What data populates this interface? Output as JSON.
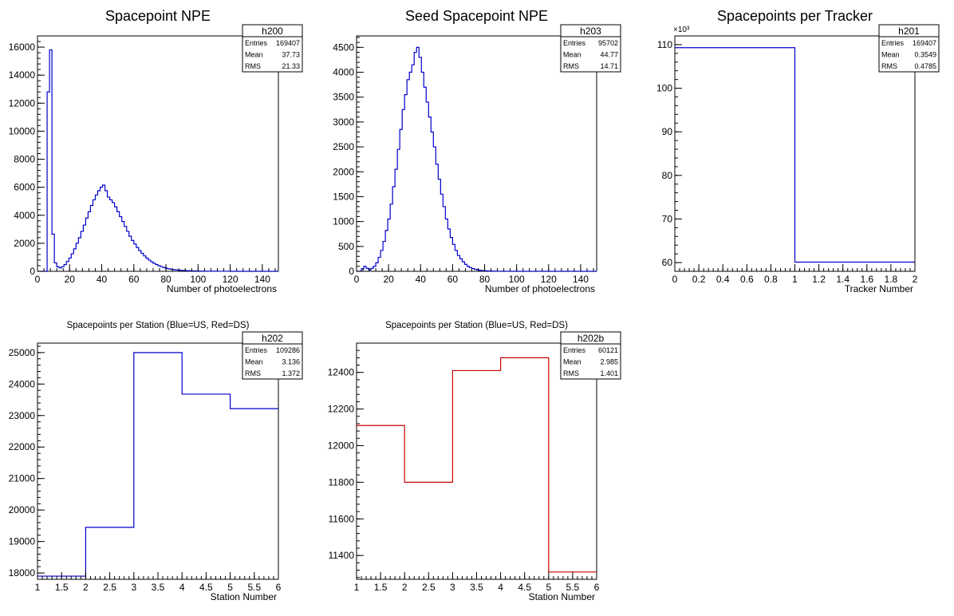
{
  "chart_data": [
    {
      "type": "histogram",
      "histname": "h200",
      "title": "Spacepoint NPE",
      "xlabel": "Number of photoelectrons",
      "ylabel": "",
      "xlim": [
        0,
        150
      ],
      "ylim": [
        0,
        16800
      ],
      "xticks": [
        0,
        20,
        40,
        60,
        80,
        100,
        120,
        140
      ],
      "yticks": [
        0,
        2000,
        4000,
        6000,
        8000,
        10000,
        12000,
        14000,
        16000
      ],
      "ytick_exponent": "",
      "line_color": "#0000cc",
      "bin_edges_start": 0,
      "bin_width": 1.5,
      "values": [
        0,
        0,
        0,
        0,
        12800,
        15800,
        2650,
        600,
        320,
        250,
        330,
        480,
        700,
        950,
        1250,
        1600,
        2000,
        2400,
        2850,
        3300,
        3800,
        4250,
        4700,
        5100,
        5450,
        5750,
        6000,
        6150,
        5750,
        5300,
        5100,
        4900,
        4600,
        4250,
        3900,
        3550,
        3200,
        2850,
        2500,
        2200,
        1950,
        1700,
        1480,
        1280,
        1100,
        940,
        800,
        680,
        570,
        480,
        400,
        330,
        270,
        220,
        180,
        150,
        120,
        100,
        85,
        70,
        60,
        50,
        42,
        36,
        30,
        25,
        21,
        18,
        15,
        12,
        10,
        8,
        7,
        6,
        5,
        4,
        3,
        3,
        2,
        2,
        0,
        0,
        0,
        0,
        0,
        0,
        0,
        0,
        0,
        0,
        0,
        0,
        0,
        0,
        0,
        0,
        0,
        0,
        0,
        0
      ],
      "stats": {
        "Entries": "169407",
        "Mean": "37.73",
        "RMS": "21.33"
      }
    },
    {
      "type": "histogram",
      "histname": "h203",
      "title": "Seed Spacepoint NPE",
      "xlabel": "Number of photoelectrons",
      "ylabel": "",
      "xlim": [
        0,
        150
      ],
      "ylim": [
        0,
        4730
      ],
      "xticks": [
        0,
        20,
        40,
        60,
        80,
        100,
        120,
        140
      ],
      "yticks": [
        0,
        500,
        1000,
        1500,
        2000,
        2500,
        3000,
        3500,
        4000,
        4500
      ],
      "ytick_exponent": "",
      "line_color": "#0000cc",
      "bin_edges_start": 0,
      "bin_width": 1.5,
      "values": [
        0,
        0,
        50,
        100,
        60,
        30,
        60,
        100,
        170,
        280,
        420,
        600,
        820,
        1050,
        1350,
        1700,
        2050,
        2450,
        2850,
        3250,
        3550,
        3850,
        4000,
        4150,
        4400,
        4500,
        4300,
        4000,
        3700,
        3400,
        3100,
        2800,
        2500,
        2150,
        1850,
        1550,
        1300,
        1050,
        850,
        680,
        540,
        420,
        320,
        250,
        190,
        140,
        100,
        75,
        55,
        40,
        30,
        20,
        15,
        10,
        8,
        6,
        4,
        3,
        2,
        1,
        0,
        0,
        0,
        0,
        0,
        0,
        0,
        0,
        0,
        0,
        0,
        0,
        0,
        0,
        0,
        0,
        0,
        0,
        0,
        0,
        0,
        0,
        0,
        0,
        0,
        0,
        0,
        0,
        0,
        0,
        0,
        0,
        0,
        0,
        0,
        0,
        0,
        0,
        0,
        0
      ],
      "stats": {
        "Entries": "95702",
        "Mean": "44.77",
        "RMS": "14.71"
      }
    },
    {
      "type": "histogram",
      "histname": "h201",
      "title": "Spacepoints per Tracker",
      "xlabel": "Tracker Number",
      "ylabel": "",
      "xlim": [
        0,
        2
      ],
      "ylim": [
        58,
        112
      ],
      "xticks": [
        0,
        0.2,
        0.4,
        0.6,
        0.8,
        1,
        1.2,
        1.4,
        1.6,
        1.8,
        2
      ],
      "yticks": [
        60,
        70,
        80,
        90,
        100,
        110
      ],
      "ytick_exponent": "×10³",
      "line_color": "#0000cc",
      "bin_edges_start": 0,
      "bin_width": 1,
      "values": [
        109.3,
        60.1
      ],
      "stats": {
        "Entries": "169407",
        "Mean": "0.3549",
        "RMS": "0.4785"
      }
    },
    {
      "type": "histogram",
      "histname": "h202",
      "title": "Spacepoints per Station (Blue=US, Red=DS)",
      "xlabel": "Station Number",
      "ylabel": "",
      "xlim": [
        1,
        6
      ],
      "ylim": [
        17800,
        25300
      ],
      "xticks": [
        1,
        1.5,
        2,
        2.5,
        3,
        3.5,
        4,
        4.5,
        5,
        5.5,
        6
      ],
      "yticks": [
        18000,
        19000,
        20000,
        21000,
        22000,
        23000,
        24000,
        25000
      ],
      "ytick_exponent": "",
      "line_color": "#0000cc",
      "bin_edges_start": 1,
      "bin_width": 1,
      "values": [
        17900,
        19450,
        25000,
        23680,
        23220
      ],
      "stats": {
        "Entries": "109286",
        "Mean": "3.136",
        "RMS": "1.372"
      }
    },
    {
      "type": "histogram",
      "histname": "h202b",
      "title": "Spacepoints per Station (Blue=US, Red=DS)",
      "xlabel": "Station Number",
      "ylabel": "",
      "xlim": [
        1,
        6
      ],
      "ylim": [
        11270,
        12560
      ],
      "xticks": [
        1,
        1.5,
        2,
        2.5,
        3,
        3.5,
        4,
        4.5,
        5,
        5.5,
        6
      ],
      "yticks": [
        11400,
        11600,
        11800,
        12000,
        12200,
        12400
      ],
      "ytick_exponent": "",
      "line_color": "#cc0000",
      "bin_edges_start": 1,
      "bin_width": 1,
      "values": [
        12110,
        11800,
        12410,
        12480,
        11310
      ],
      "stats": {
        "Entries": "60121",
        "Mean": "2.985",
        "RMS": "1.401"
      }
    }
  ]
}
